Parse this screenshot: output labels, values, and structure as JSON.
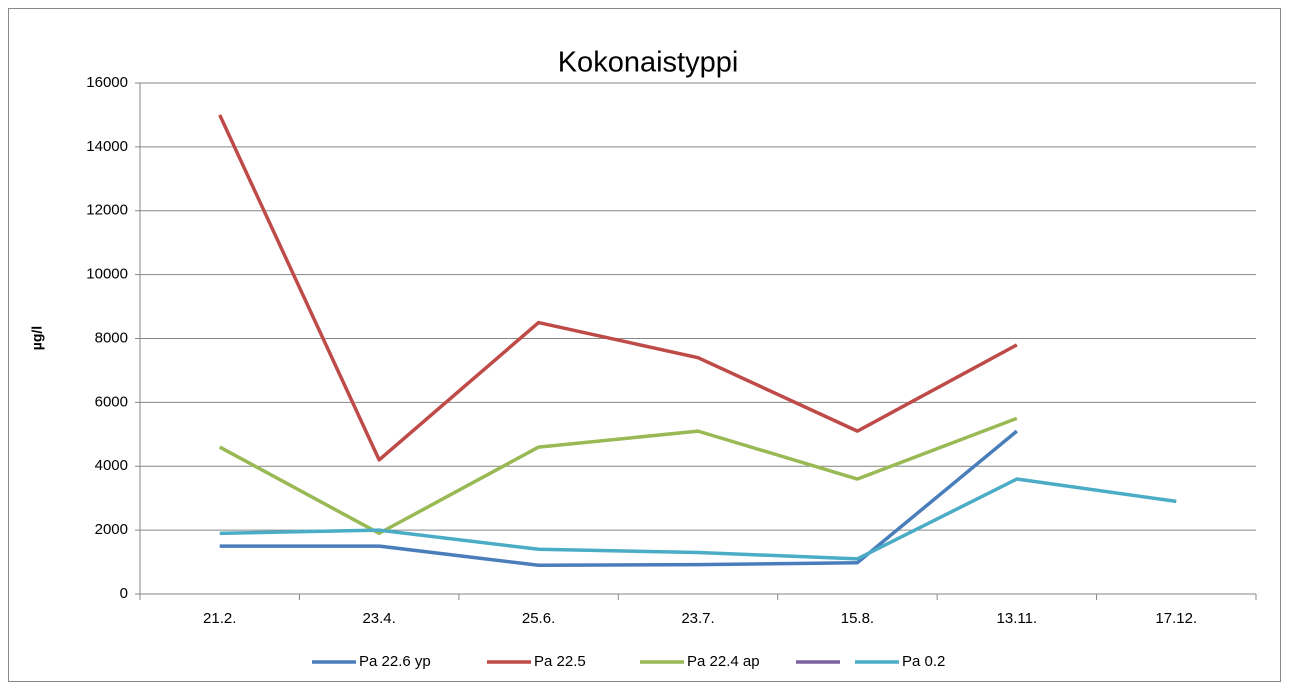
{
  "chart_data": {
    "type": "line",
    "title": "Kokonaistyppi",
    "y_label": "µg/l",
    "categories": [
      "21.2.",
      "23.4.",
      "25.6.",
      "23.7.",
      "15.8.",
      "13.11.",
      "17.12."
    ],
    "series": [
      {
        "name": "Pa 22.6 yp",
        "color": "#4a7ebb",
        "values": [
          1500,
          1500,
          900,
          920,
          980,
          5100,
          null
        ]
      },
      {
        "name": "Pa 22.5",
        "color": "#be4b48",
        "values": [
          15000,
          4200,
          8500,
          7400,
          5100,
          7800,
          null
        ]
      },
      {
        "name": "Pa 22.4 ap",
        "color": "#98b954",
        "values": [
          4600,
          1900,
          4600,
          5100,
          3600,
          5500,
          null
        ]
      },
      {
        "name": null,
        "color": "#7d60a0",
        "values": [
          null,
          null,
          null,
          null,
          null,
          null,
          null
        ]
      },
      {
        "name": "Pa 0.2",
        "color": "#4bacc6",
        "values": [
          1900,
          2000,
          1400,
          1300,
          1100,
          3600,
          2900
        ]
      }
    ],
    "ylim": [
      0,
      16000
    ],
    "yticks": [
      0,
      2000,
      4000,
      6000,
      8000,
      10000,
      12000,
      14000,
      16000
    ],
    "grid": true,
    "legend": "bottom"
  }
}
